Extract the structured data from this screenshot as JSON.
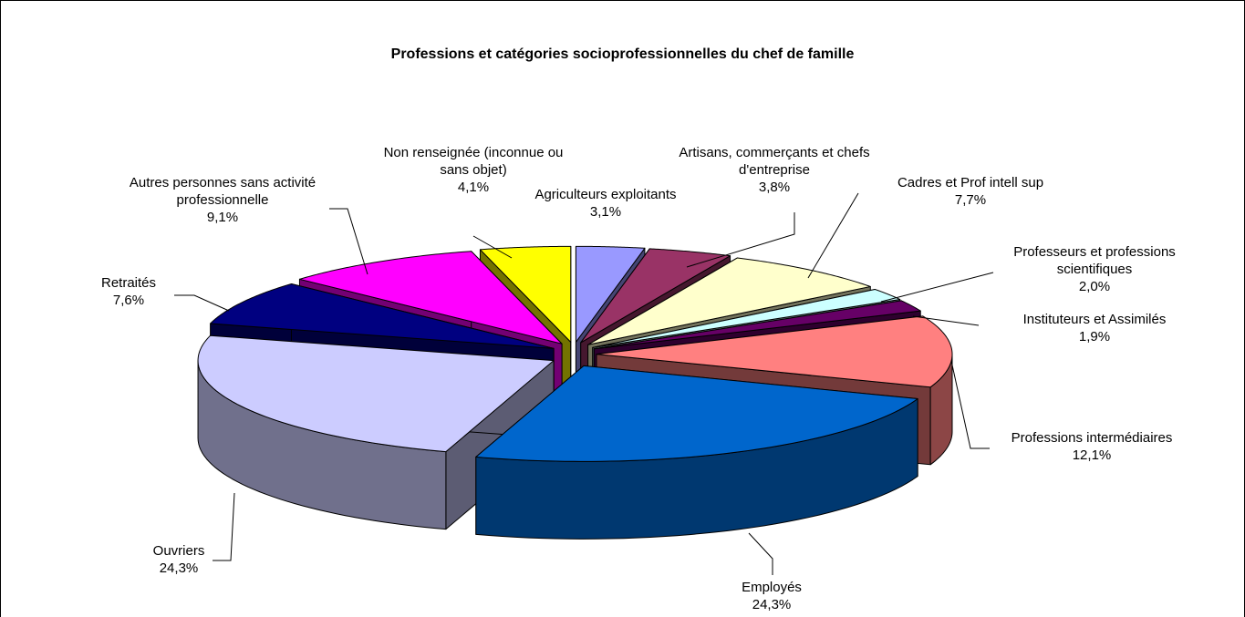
{
  "chart_data": {
    "type": "pie",
    "title": "Professions et catégories socioprofessionnelles du chef de famille",
    "categories": [
      "Agriculteurs exploitants",
      "Artisans, commerçants et chefs d'entreprise",
      "Cadres et Prof intell sup",
      "Professeurs et professions scientifiques",
      "Instituteurs et Assimilés",
      "Professions intermédiaires",
      "Employés",
      "Ouvriers",
      "Retraités",
      "Autres personnes sans activité professionnelle",
      "Non renseignée (inconnue ou sans objet)"
    ],
    "values": [
      3.1,
      3.8,
      7.7,
      2.0,
      1.9,
      12.1,
      24.3,
      24.3,
      7.6,
      9.1,
      4.1
    ],
    "value_labels": [
      "3,1%",
      "3,8%",
      "7,7%",
      "2,0%",
      "1,9%",
      "12,1%",
      "24,3%",
      "24,3%",
      "7,6%",
      "9,1%",
      "4,1%"
    ],
    "colors": [
      "#9999FF",
      "#993366",
      "#FFFFCC",
      "#CCFFFF",
      "#660066",
      "#FF8080",
      "#0066CC",
      "#CCCCFF",
      "#000080",
      "#FF00FF",
      "#FFFF00"
    ]
  }
}
